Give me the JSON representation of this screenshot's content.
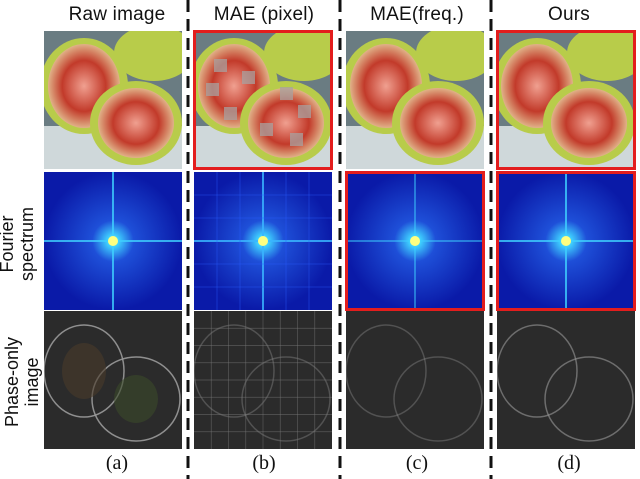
{
  "columns": [
    {
      "header": "Raw image",
      "caption": "(a)",
      "highlight": false,
      "pixel_boxes": false
    },
    {
      "header": "MAE (pixel)",
      "caption": "(b)",
      "highlight": true,
      "pixel_boxes": true
    },
    {
      "header": "MAE(freq.)",
      "caption": "(c)",
      "highlight": true,
      "pixel_boxes": false
    },
    {
      "header": "Ours",
      "caption": "(d)",
      "highlight": true,
      "pixel_boxes": false
    }
  ],
  "row_labels": {
    "fourier": [
      "Fourier",
      "spectrum"
    ],
    "phase": [
      "Phase-only",
      "image"
    ]
  },
  "highlights": [
    {
      "column": "MAE (pixel)",
      "row": "image"
    },
    {
      "column": "MAE(freq.)",
      "row": "fourier"
    },
    {
      "column": "Ours",
      "row": "image"
    },
    {
      "column": "Ours",
      "row": "fourier"
    }
  ],
  "colors": {
    "highlight": "#e31d1d",
    "divider": "#111111",
    "spectrum_bg": "#0a1aa8",
    "spectrum_glow": "#3fd0ff",
    "phase_bg": "#2b2b2b",
    "fig_flesh": "#c23a2a",
    "fig_skin": "#b8cc4a"
  }
}
